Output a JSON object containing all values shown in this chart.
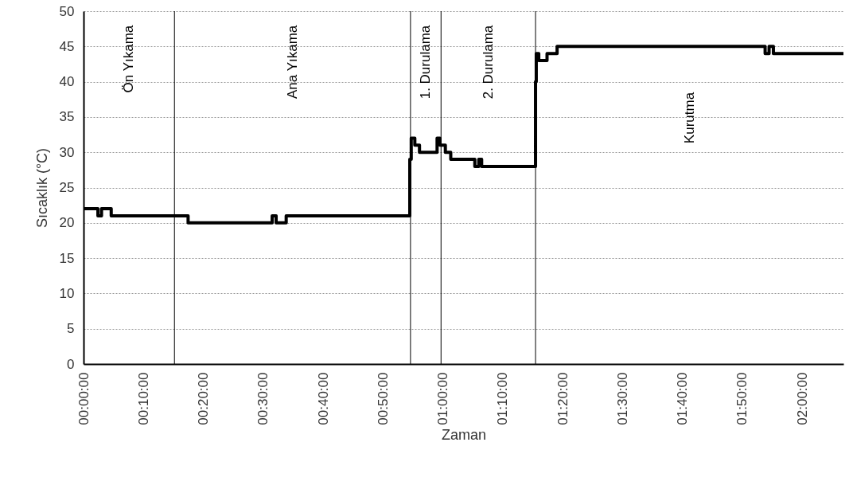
{
  "chart_data": {
    "type": "step",
    "xlabel": "Zaman",
    "ylabel": "Sıcaklık (°C)",
    "x": [
      0,
      0.04,
      0.05,
      0.077,
      0.291,
      0.525,
      0.536,
      0.564,
      0.908,
      0.912,
      0.922,
      0.935,
      0.984,
      0.992,
      1.007,
      1.022,
      1.089,
      1.1,
      1.108,
      1.258,
      1.26,
      1.267,
      1.29,
      1.318,
      1.897,
      1.908,
      1.92,
      2.115
    ],
    "series": [
      {
        "color": "#000000",
        "values": [
          22,
          21,
          22,
          21,
          20,
          21,
          20,
          21,
          29,
          32,
          31,
          30,
          32,
          31,
          30,
          29,
          28,
          29,
          28,
          40,
          44,
          43,
          44,
          45,
          44,
          45,
          44,
          44
        ]
      }
    ],
    "xlim": [
      0,
      2.115
    ],
    "xticks": [
      {
        "value": 0,
        "label": "00:00:00"
      },
      {
        "value": 0.1667,
        "label": "00:10:00"
      },
      {
        "value": 0.3333,
        "label": "00:20:00"
      },
      {
        "value": 0.5,
        "label": "00:30:00"
      },
      {
        "value": 0.6667,
        "label": "00:40:00"
      },
      {
        "value": 0.8333,
        "label": "00:50:00"
      },
      {
        "value": 1,
        "label": "01:00:00"
      },
      {
        "value": 1.1667,
        "label": "01:10:00"
      },
      {
        "value": 1.3333,
        "label": "01:20:00"
      },
      {
        "value": 1.5,
        "label": "01:30:00"
      },
      {
        "value": 1.6667,
        "label": "01:40:00"
      },
      {
        "value": 1.8333,
        "label": "01:50:00"
      },
      {
        "value": 2,
        "label": "02:00:00"
      }
    ],
    "ylim": [
      0,
      50
    ],
    "yticks": [
      0,
      5,
      10,
      15,
      20,
      25,
      30,
      35,
      40,
      45,
      50
    ],
    "grid": "y",
    "marker": "none",
    "line_style": "solid",
    "ref_lines": [
      {
        "axis": "x",
        "value": 0.253
      },
      {
        "axis": "x",
        "value": 0.91
      },
      {
        "axis": "x",
        "value": 0.995
      },
      {
        "axis": "x",
        "value": 1.258
      }
    ],
    "annotations": [
      "Ön Yıkama",
      "Ana Yıkama",
      "1. Durulama",
      "2. Durulama",
      "Kurutma"
    ]
  }
}
